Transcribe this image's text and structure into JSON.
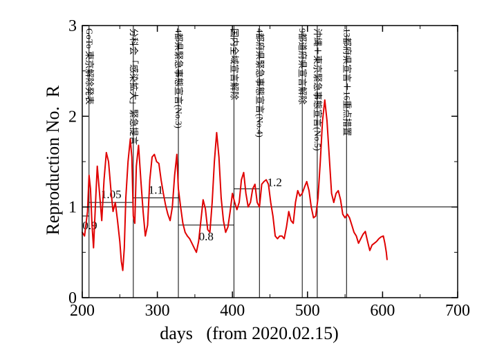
{
  "chart_data": {
    "type": "line",
    "title": "",
    "xlabel": "days   (from 2020.02.15)",
    "ylabel": "Reproduction No.  R",
    "xlim": [
      200,
      700
    ],
    "ylim": [
      0,
      3
    ],
    "xticks": [
      200,
      300,
      400,
      500,
      600,
      700
    ],
    "yticks": [
      0,
      1,
      2,
      3
    ],
    "grid": false,
    "reference_line": 1,
    "series": [
      {
        "color": "#e00000",
        "x": [
          200,
          203,
          207,
          209,
          211,
          213,
          215,
          218,
          220,
          223,
          226,
          229,
          232,
          235,
          238,
          241,
          244,
          247,
          250,
          252,
          254,
          256,
          258,
          261,
          264,
          266,
          268,
          270,
          272,
          275,
          278,
          281,
          284,
          287,
          290,
          293,
          296,
          299,
          302,
          305,
          308,
          311,
          314,
          317,
          320,
          323,
          326,
          328,
          331,
          334,
          337,
          340,
          343,
          346,
          349,
          352,
          355,
          358,
          361,
          364,
          367,
          370,
          373,
          376,
          379,
          382,
          385,
          388,
          391,
          394,
          397,
          400,
          403,
          406,
          409,
          412,
          415,
          418,
          421,
          424,
          427,
          430,
          433,
          436,
          439,
          442,
          445,
          448,
          451,
          454,
          457,
          460,
          463,
          466,
          469,
          472,
          475,
          478,
          481,
          484,
          487,
          490,
          493,
          496,
          499,
          502,
          505,
          508,
          511,
          514,
          517,
          520,
          523,
          526,
          529,
          532,
          535,
          538,
          541,
          544,
          547,
          550,
          553,
          556,
          559,
          562,
          565,
          568,
          571,
          574,
          577,
          580,
          583,
          586,
          589,
          592,
          595,
          598,
          601,
          603,
          605,
          606
        ],
        "values": [
          0.72,
          0.68,
          0.95,
          1.35,
          1.2,
          0.8,
          0.55,
          1.1,
          1.45,
          1.15,
          0.85,
          1.3,
          1.6,
          1.5,
          1.2,
          0.95,
          1.05,
          0.85,
          0.62,
          0.4,
          0.3,
          0.55,
          1.1,
          1.5,
          1.75,
          1.55,
          0.9,
          0.82,
          1.45,
          1.68,
          1.3,
          0.95,
          0.68,
          0.8,
          1.3,
          1.55,
          1.58,
          1.5,
          1.48,
          1.3,
          1.15,
          1.02,
          0.92,
          0.85,
          1.0,
          1.35,
          1.58,
          1.2,
          1.0,
          0.82,
          0.72,
          0.68,
          0.65,
          0.6,
          0.55,
          0.5,
          0.62,
          0.85,
          1.08,
          0.98,
          0.75,
          0.72,
          1.05,
          1.5,
          1.82,
          1.55,
          1.1,
          0.85,
          0.72,
          0.78,
          0.95,
          1.15,
          1.05,
          0.97,
          1.05,
          1.3,
          1.38,
          1.15,
          1.0,
          1.05,
          1.2,
          1.25,
          1.05,
          1.0,
          1.25,
          1.28,
          1.3,
          1.25,
          1.05,
          0.9,
          0.68,
          0.65,
          0.68,
          0.68,
          0.65,
          0.78,
          0.95,
          0.85,
          0.82,
          1.05,
          1.18,
          1.12,
          1.15,
          1.22,
          1.28,
          1.18,
          1.0,
          0.88,
          0.9,
          1.1,
          1.5,
          1.95,
          2.18,
          1.95,
          1.55,
          1.15,
          1.05,
          1.15,
          1.18,
          1.08,
          0.92,
          0.88,
          0.92,
          0.88,
          0.8,
          0.72,
          0.68,
          0.6,
          0.65,
          0.7,
          0.73,
          0.62,
          0.52,
          0.58,
          0.6,
          0.62,
          0.65,
          0.67,
          0.68,
          0.6,
          0.5,
          0.42
        ]
      }
    ],
    "event_lines": [
      {
        "x": 209,
        "label": "GoTo 東京解除発表"
      },
      {
        "x": 268,
        "label": "分科会「感染拡大」緊急提言"
      },
      {
        "x": 328,
        "label": "4都県緊急事態宣言(No.3)"
      },
      {
        "x": 402,
        "label": "国内全域宣言解除"
      },
      {
        "x": 436,
        "label": "4都府県緊急事態宣言(No.4)"
      },
      {
        "x": 493,
        "label": "9都道府県宣言解除"
      },
      {
        "x": 513,
        "label": "沖縄＋東京緊急事態宣言(No.5)"
      },
      {
        "x": 552,
        "label": "13都府県宣言＋16重点措置"
      }
    ],
    "levels": [
      {
        "label": "0.9",
        "value": 0.9,
        "x_start": 200,
        "x_end": 209
      },
      {
        "label": "1.05",
        "value": 1.05,
        "x_start": 209,
        "x_end": 268
      },
      {
        "label": "1.1",
        "value": 1.1,
        "x_start": 268,
        "x_end": 328
      },
      {
        "label": "0.8",
        "value": 0.8,
        "x_start": 328,
        "x_end": 402
      },
      {
        "label": "1.2",
        "value": 1.2,
        "x_start": 402,
        "x_end": 436
      }
    ]
  }
}
